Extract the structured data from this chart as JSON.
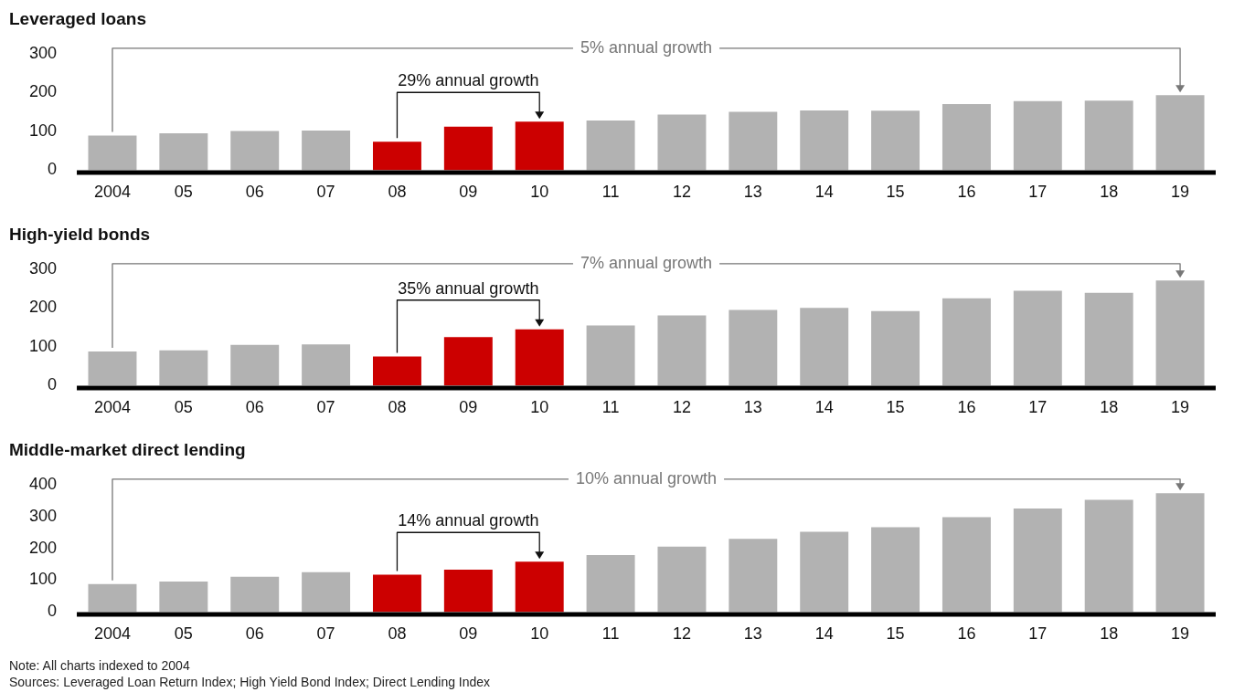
{
  "chart_data": [
    {
      "type": "bar",
      "title": "Leveraged loans",
      "categories": [
        "2004",
        "05",
        "06",
        "07",
        "08",
        "09",
        "10",
        "11",
        "12",
        "13",
        "14",
        "15",
        "16",
        "17",
        "18",
        "19"
      ],
      "values": [
        89,
        95,
        101,
        102,
        73,
        112,
        125,
        128,
        143,
        150,
        154,
        153,
        170,
        178,
        179,
        193
      ],
      "colors": [
        "#b2b2b2",
        "#b2b2b2",
        "#b2b2b2",
        "#b2b2b2",
        "#cc0000",
        "#cc0000",
        "#cc0000",
        "#b2b2b2",
        "#b2b2b2",
        "#b2b2b2",
        "#b2b2b2",
        "#b2b2b2",
        "#b2b2b2",
        "#b2b2b2",
        "#b2b2b2",
        "#b2b2b2"
      ],
      "ylim": [
        0,
        300
      ],
      "yticks": [
        0,
        100,
        200,
        300
      ],
      "grid": false,
      "legend": false,
      "annotations": [
        {
          "text": "5% annual growth",
          "x": "19",
          "y": 193
        },
        {
          "text": "29% annual growth",
          "x": "10",
          "y": 125
        }
      ]
    },
    {
      "type": "bar",
      "title": "High-yield bonds",
      "categories": [
        "2004",
        "05",
        "06",
        "07",
        "08",
        "09",
        "10",
        "11",
        "12",
        "13",
        "14",
        "15",
        "16",
        "17",
        "18",
        "19"
      ],
      "values": [
        88,
        91,
        105,
        106,
        75,
        125,
        145,
        155,
        181,
        195,
        200,
        192,
        225,
        244,
        239,
        271
      ],
      "colors": [
        "#b2b2b2",
        "#b2b2b2",
        "#b2b2b2",
        "#b2b2b2",
        "#cc0000",
        "#cc0000",
        "#cc0000",
        "#b2b2b2",
        "#b2b2b2",
        "#b2b2b2",
        "#b2b2b2",
        "#b2b2b2",
        "#b2b2b2",
        "#b2b2b2",
        "#b2b2b2",
        "#b2b2b2"
      ],
      "ylim": [
        0,
        300
      ],
      "yticks": [
        0,
        100,
        200,
        300
      ],
      "grid": false,
      "legend": false,
      "annotations": [
        {
          "text": "7% annual growth",
          "x": "19",
          "y": 271
        },
        {
          "text": "35% annual growth",
          "x": "10",
          "y": 145
        }
      ]
    },
    {
      "type": "bar",
      "title": "Middle-market direct lending",
      "categories": [
        "2004",
        "05",
        "06",
        "07",
        "08",
        "09",
        "10",
        "11",
        "12",
        "13",
        "14",
        "15",
        "16",
        "17",
        "18",
        "19"
      ],
      "values": [
        88,
        96,
        111,
        125,
        117,
        133,
        158,
        179,
        205,
        230,
        252,
        266,
        298,
        325,
        352,
        373
      ],
      "colors": [
        "#b2b2b2",
        "#b2b2b2",
        "#b2b2b2",
        "#b2b2b2",
        "#cc0000",
        "#cc0000",
        "#cc0000",
        "#b2b2b2",
        "#b2b2b2",
        "#b2b2b2",
        "#b2b2b2",
        "#b2b2b2",
        "#b2b2b2",
        "#b2b2b2",
        "#b2b2b2",
        "#b2b2b2"
      ],
      "ylim": [
        0,
        400
      ],
      "yticks": [
        0,
        100,
        200,
        300,
        400
      ],
      "grid": false,
      "legend": false,
      "annotations": [
        {
          "text": "10% annual growth",
          "x": "19",
          "y": 373
        },
        {
          "text": "14% annual growth",
          "x": "10",
          "y": 158
        },
        "Note: All charts indexed to 2004",
        "Sources: Leveraged Loan Return Index; High Yield Bond Index; Direct Lending Index"
      ]
    }
  ]
}
